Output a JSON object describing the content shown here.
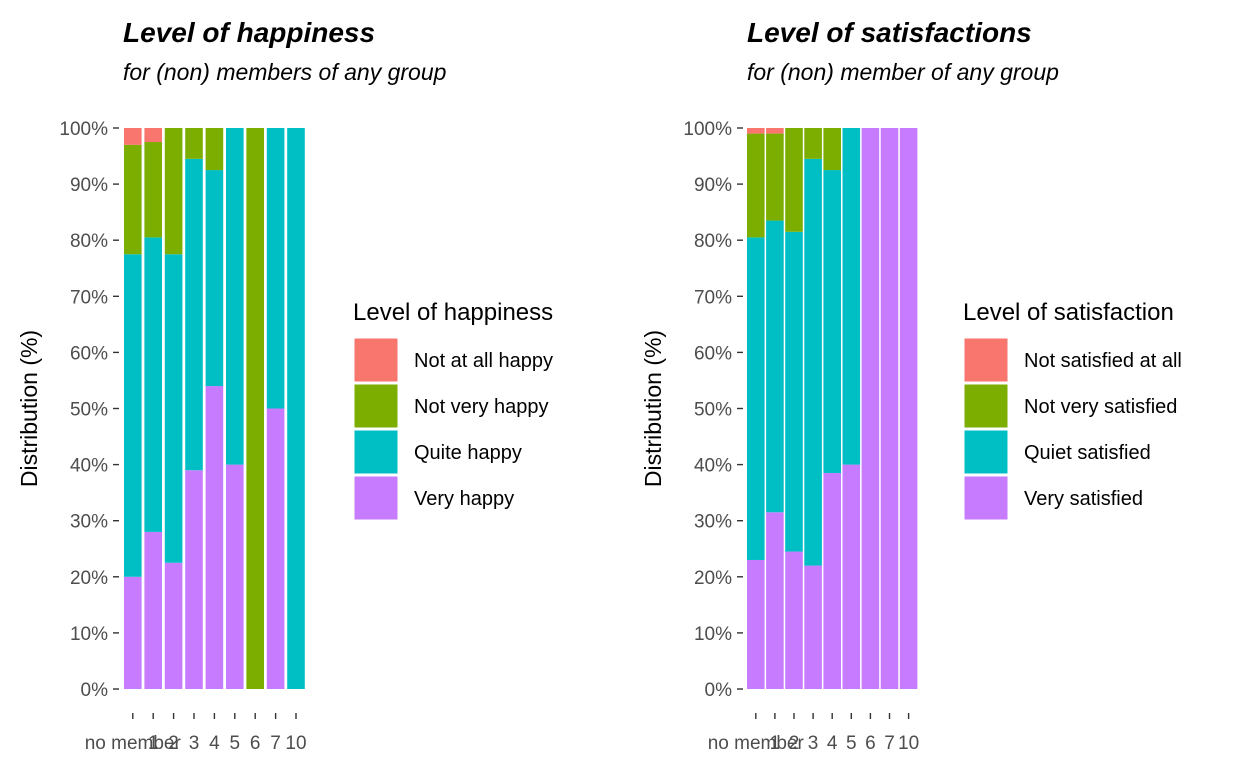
{
  "chart_data": [
    {
      "type": "bar",
      "stacked": true,
      "normalized": true,
      "title": "Level of happiness",
      "subtitle": "for (non) members of any group",
      "ylabel": "Distribution (%)",
      "xlabel": "",
      "ylim": [
        0,
        100
      ],
      "yticks": [
        "0%",
        "10%",
        "20%",
        "30%",
        "40%",
        "50%",
        "60%",
        "70%",
        "80%",
        "90%",
        "100%"
      ],
      "categories": [
        "no member",
        "1",
        "2",
        "3",
        "4",
        "5",
        "6",
        "7",
        "10"
      ],
      "legend": {
        "title": "Level of happiness",
        "position": "right"
      },
      "series": [
        {
          "name": "Very happy",
          "color": "#C77CFF",
          "values": [
            20,
            28,
            22.5,
            39,
            54,
            40,
            0,
            50,
            0
          ]
        },
        {
          "name": "Quite happy",
          "color": "#00BFC4",
          "values": [
            57.5,
            52.5,
            55,
            55.5,
            38.5,
            60,
            0,
            50,
            100
          ]
        },
        {
          "name": "Not very happy",
          "color": "#7CAE00",
          "values": [
            19.5,
            17,
            22.5,
            5.5,
            7.5,
            0,
            100,
            0,
            0
          ]
        },
        {
          "name": "Not at all happy",
          "color": "#F8766D",
          "values": [
            3,
            2.5,
            0,
            0,
            0,
            0,
            0,
            0,
            0
          ]
        }
      ]
    },
    {
      "type": "bar",
      "stacked": true,
      "normalized": true,
      "title": "Level of satisfactions",
      "subtitle": " for (non) member of any group",
      "ylabel": "Distribution (%)",
      "xlabel": "",
      "ylim": [
        0,
        100
      ],
      "yticks": [
        "0%",
        "10%",
        "20%",
        "30%",
        "40%",
        "50%",
        "60%",
        "70%",
        "80%",
        "90%",
        "100%"
      ],
      "categories": [
        "no member",
        "1",
        "2",
        "3",
        "4",
        "5",
        "6",
        "7",
        "10"
      ],
      "legend": {
        "title": "Level of satisfaction",
        "position": "right"
      },
      "series": [
        {
          "name": "Very satisfied",
          "color": "#C77CFF",
          "values": [
            23,
            31.5,
            24.5,
            22,
            38.5,
            40,
            100,
            100,
            100
          ]
        },
        {
          "name": "Quiet satisfied",
          "color": "#00BFC4",
          "values": [
            57.5,
            52,
            57,
            72.5,
            54,
            60,
            0,
            0,
            0
          ]
        },
        {
          "name": "Not very satisfied",
          "color": "#7CAE00",
          "values": [
            18.5,
            15.5,
            18.5,
            5.5,
            7.5,
            0,
            0,
            0,
            0
          ]
        },
        {
          "name": "Not satisfied at all",
          "color": "#F8766D",
          "values": [
            1,
            1,
            0,
            0,
            0,
            0,
            0,
            0,
            0
          ]
        }
      ]
    }
  ]
}
